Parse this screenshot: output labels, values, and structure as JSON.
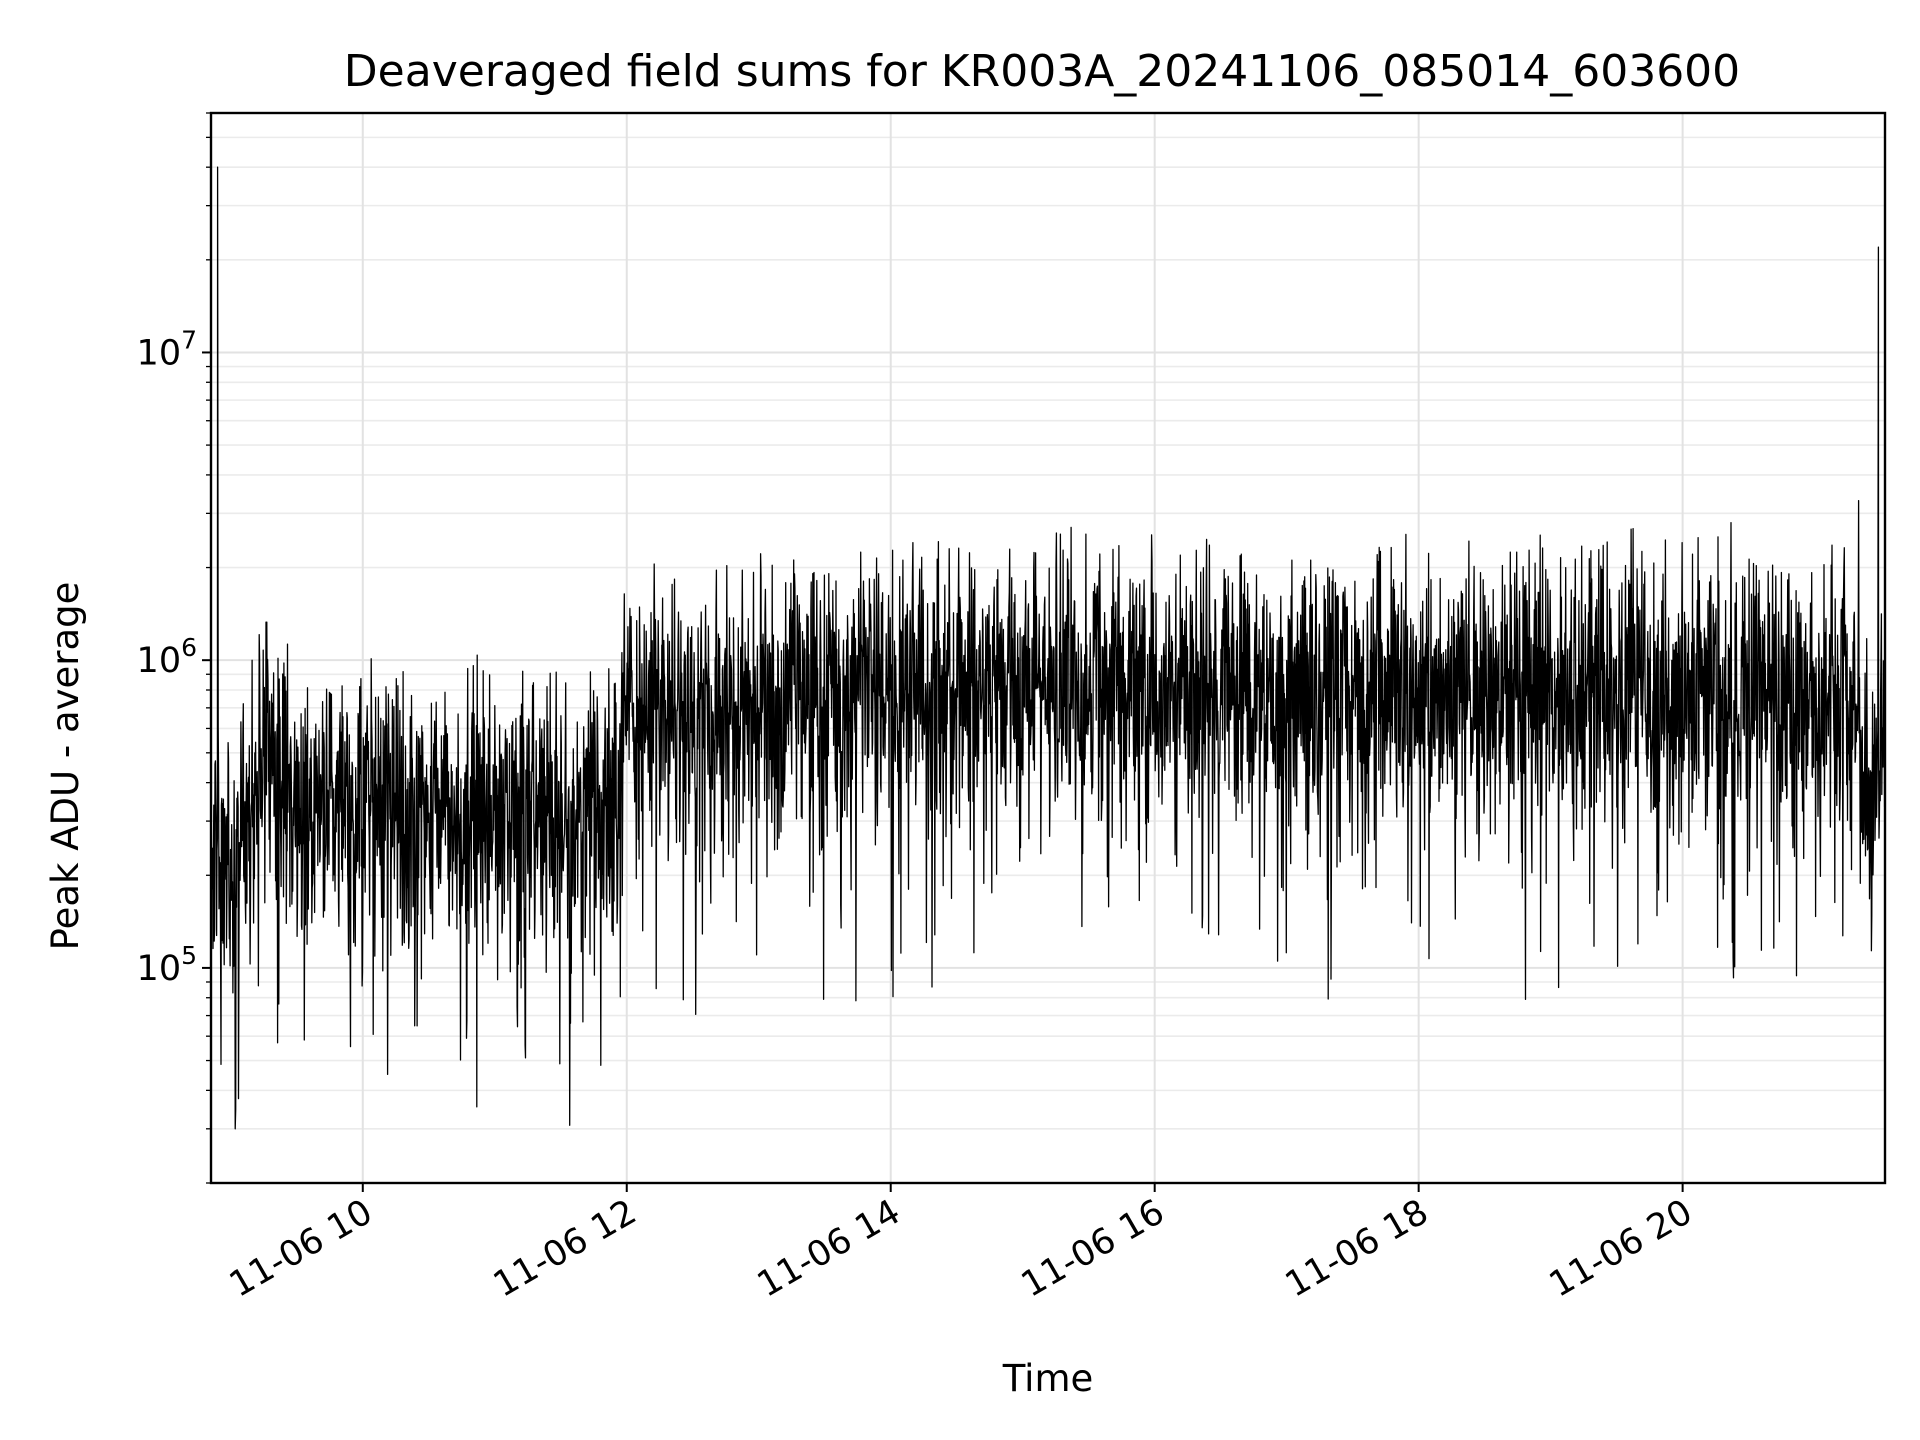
{
  "chart_data": {
    "type": "line",
    "title": "Deaveraged field sums for KR003A_20241106_085014_603600",
    "xlabel": "Time",
    "ylabel": "Peak ADU - average",
    "x_axis": {
      "type": "datetime",
      "range": [
        "2024-11-06T08:51:00",
        "2024-11-06T21:32:00"
      ],
      "ticks": [
        {
          "value": "2024-11-06T10:00:00",
          "label": "11-06 10"
        },
        {
          "value": "2024-11-06T12:00:00",
          "label": "11-06 12"
        },
        {
          "value": "2024-11-06T14:00:00",
          "label": "11-06 14"
        },
        {
          "value": "2024-11-06T16:00:00",
          "label": "11-06 16"
        },
        {
          "value": "2024-11-06T18:00:00",
          "label": "11-06 18"
        },
        {
          "value": "2024-11-06T20:00:00",
          "label": "11-06 20"
        }
      ]
    },
    "y_axis": {
      "scale": "log",
      "range": [
        20000,
        60000000
      ],
      "ticks": [
        {
          "value": 100000,
          "base": "10",
          "exponent": "5"
        },
        {
          "value": 1000000,
          "base": "10",
          "exponent": "6"
        },
        {
          "value": 10000000,
          "base": "10",
          "exponent": "7"
        }
      ]
    },
    "grid": true,
    "series": [
      {
        "color": "#000000",
        "x": [
          "2024-11-06T08:51:00",
          "2024-11-06T09:00:00",
          "2024-11-06T09:08:00",
          "2024-11-06T09:15:00",
          "2024-11-06T09:30:00",
          "2024-11-06T10:00:00",
          "2024-11-06T10:30:00",
          "2024-11-06T11:00:00",
          "2024-11-06T11:30:00",
          "2024-11-06T11:55:00",
          "2024-11-06T12:00:00",
          "2024-11-06T12:30:00",
          "2024-11-06T13:00:00",
          "2024-11-06T13:30:00",
          "2024-11-06T14:00:00",
          "2024-11-06T14:30:00",
          "2024-11-06T15:00:00",
          "2024-11-06T15:30:00",
          "2024-11-06T16:00:00",
          "2024-11-06T16:30:00",
          "2024-11-06T17:00:00",
          "2024-11-06T17:30:00",
          "2024-11-06T18:00:00",
          "2024-11-06T18:30:00",
          "2024-11-06T19:00:00",
          "2024-11-06T19:30:00",
          "2024-11-06T20:00:00",
          "2024-11-06T20:30:00",
          "2024-11-06T21:00:00",
          "2024-11-06T21:15:00",
          "2024-11-06T21:25:00",
          "2024-11-06T21:32:00"
        ],
        "y": [
          250000,
          200000,
          280000,
          500000,
          350000,
          330000,
          330000,
          300000,
          290000,
          320000,
          650000,
          650000,
          700000,
          750000,
          800000,
          800000,
          800000,
          820000,
          780000,
          800000,
          800000,
          780000,
          780000,
          760000,
          780000,
          800000,
          800000,
          780000,
          720000,
          900000,
          320000,
          550000
        ],
        "spikes": [
          {
            "x": "2024-11-06T08:54:00",
            "y": 40000000
          },
          {
            "x": "2024-11-06T21:29:00",
            "y": 22000000
          },
          {
            "x": "2024-11-06T21:20:00",
            "y": 3300000
          },
          {
            "x": "2024-11-06T15:22:00",
            "y": 2700000
          },
          {
            "x": "2024-11-06T20:22:00",
            "y": 2800000
          },
          {
            "x": "2024-11-06T09:02:00",
            "y": 30000
          }
        ]
      }
    ]
  }
}
